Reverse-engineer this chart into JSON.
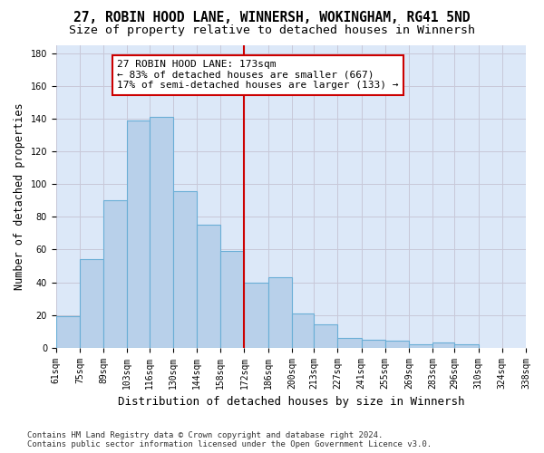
{
  "title": "27, ROBIN HOOD LANE, WINNERSH, WOKINGHAM, RG41 5ND",
  "subtitle": "Size of property relative to detached houses in Winnersh",
  "xlabel": "Distribution of detached houses by size in Winnersh",
  "ylabel": "Number of detached properties",
  "bar_values": [
    19,
    54,
    90,
    139,
    141,
    96,
    75,
    59,
    40,
    43,
    21,
    14,
    6,
    5,
    4,
    2,
    3,
    2
  ],
  "bar_left": [
    61,
    75,
    89,
    103,
    116,
    130,
    144,
    158,
    172,
    186,
    200,
    213,
    227,
    241,
    255,
    269,
    283,
    296
  ],
  "bar_widths": [
    14,
    14,
    14,
    13,
    14,
    14,
    14,
    14,
    14,
    14,
    13,
    14,
    14,
    14,
    14,
    14,
    13,
    14
  ],
  "xtick_positions": [
    61,
    75,
    89,
    103,
    116,
    130,
    144,
    158,
    172,
    186,
    200,
    213,
    227,
    241,
    255,
    269,
    283,
    296,
    310,
    324,
    338
  ],
  "xtick_labels": [
    "61sqm",
    "75sqm",
    "89sqm",
    "103sqm",
    "116sqm",
    "130sqm",
    "144sqm",
    "158sqm",
    "172sqm",
    "186sqm",
    "200sqm",
    "213sqm",
    "227sqm",
    "241sqm",
    "255sqm",
    "269sqm",
    "283sqm",
    "296sqm",
    "310sqm",
    "324sqm",
    "338sqm"
  ],
  "bar_color": "#b8d0ea",
  "bar_edgecolor": "#6aaed6",
  "vline_x": 172,
  "vline_color": "#cc0000",
  "annotation_line1": "27 ROBIN HOOD LANE: 173sqm",
  "annotation_line2": "← 83% of detached houses are smaller (667)",
  "annotation_line3": "17% of semi-detached houses are larger (133) →",
  "annotation_box_edgecolor": "#cc0000",
  "annotation_facecolor": "white",
  "ylim": [
    0,
    185
  ],
  "yticks": [
    0,
    20,
    40,
    60,
    80,
    100,
    120,
    140,
    160,
    180
  ],
  "xlim": [
    61,
    338
  ],
  "grid_color": "#c8c8d8",
  "background_color": "#dce8f8",
  "footer": "Contains HM Land Registry data © Crown copyright and database right 2024.\nContains public sector information licensed under the Open Government Licence v3.0.",
  "title_fontsize": 10.5,
  "subtitle_fontsize": 9.5,
  "xlabel_fontsize": 9,
  "ylabel_fontsize": 8.5,
  "tick_fontsize": 7,
  "annotation_fontsize": 8,
  "footer_fontsize": 6.5
}
